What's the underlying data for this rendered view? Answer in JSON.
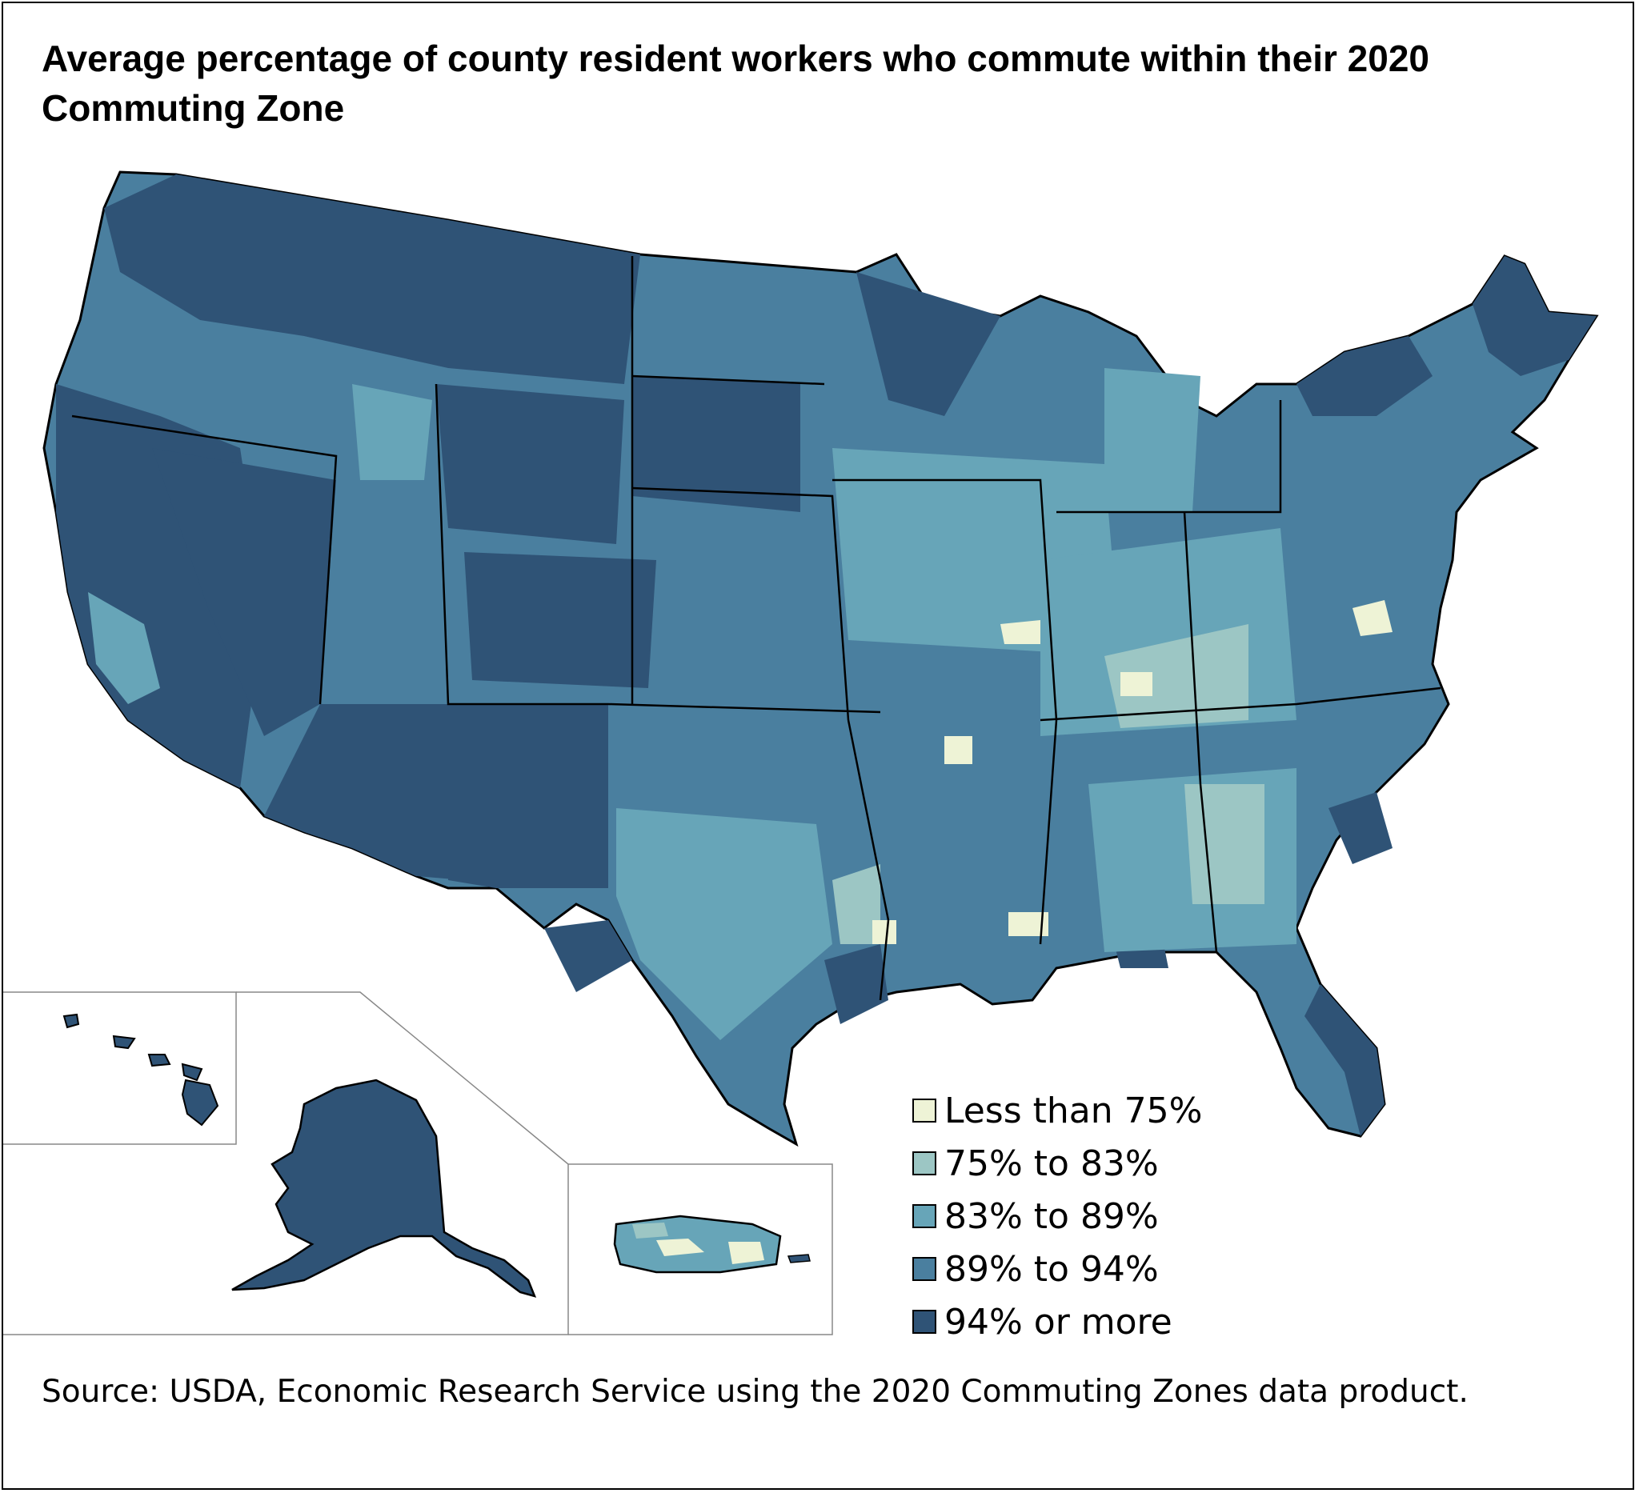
{
  "title": "Average percentage of county resident workers who commute within their 2020 Commuting Zone",
  "source": "Source: USDA, Economic Research Service using the 2020 Commuting Zones data product.",
  "legend": [
    {
      "label": "Less than 75%",
      "color": "#eef3d6"
    },
    {
      "label": "75% to 83%",
      "color": "#9cc6c4"
    },
    {
      "label": "83% to 89%",
      "color": "#67a5b8"
    },
    {
      "label": "89% to 94%",
      "color": "#4a7f9f"
    },
    {
      "label": "94% or more",
      "color": "#2f5376"
    }
  ],
  "colors": {
    "border": "#000000",
    "inset_border": "#888888"
  }
}
